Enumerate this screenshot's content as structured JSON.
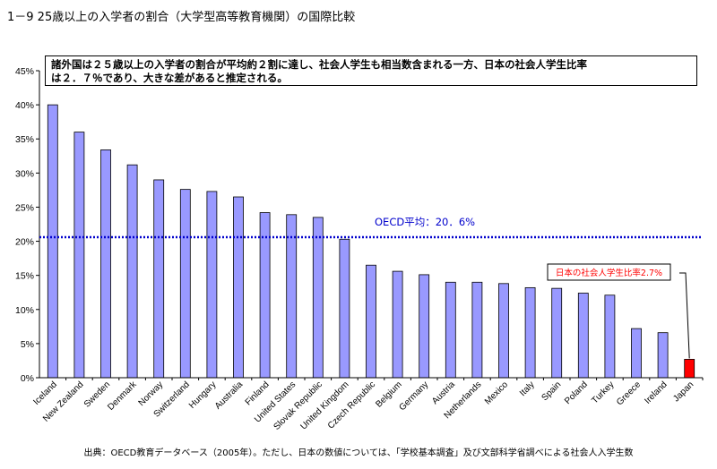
{
  "title": "1－9 25歳以上の入学者の割合（大学型高等教育機関）の国際比較",
  "summary": {
    "line1": "諸外国は２５歳以上の入学者の割合が平均約２割に達し、社会人学生も相当数含まれる一方、日本の社会人学生比率",
    "line2": "は２．７％であり、大きな差があると推定される。"
  },
  "source": "出典：OECD教育データベース（2005年）。ただし、日本の数値については、「学校基本調査」及び文部科学省調べによる社会人入学生数",
  "colors": {
    "bar": "#9999ff",
    "highlight": "#ff0000",
    "avg_line": "#0000cc"
  },
  "chart_data": {
    "type": "bar",
    "categories": [
      "Iceland",
      "New Zealand",
      "Sweden",
      "Denmark",
      "Norway",
      "Switzerland",
      "Hungary",
      "Australia",
      "Finland",
      "United States",
      "Slovak Republic",
      "United Kingdom",
      "Czech Republic",
      "Belgium",
      "Germany",
      "Austria",
      "Netherlands",
      "Mexico",
      "Italy",
      "Spain",
      "Poland",
      "Turkey",
      "Greece",
      "Ireland",
      "Japan"
    ],
    "values": [
      40.0,
      36.0,
      33.4,
      31.2,
      29.0,
      27.6,
      27.3,
      26.5,
      24.2,
      23.9,
      23.5,
      20.3,
      16.5,
      15.6,
      15.1,
      14.0,
      14.0,
      13.8,
      13.2,
      13.1,
      12.4,
      12.1,
      7.2,
      6.6,
      2.7
    ],
    "highlight_category": "Japan",
    "ylim": [
      0,
      45
    ],
    "yticks": [
      "0%",
      "5%",
      "10%",
      "15%",
      "20%",
      "25%",
      "30%",
      "35%",
      "40%",
      "45%"
    ],
    "average_line": {
      "value": 20.6,
      "label": "OECD平均：20．6%"
    },
    "annotation": {
      "text": "日本の社会人学生比率2.7%",
      "target": "Japan"
    },
    "grid": false
  }
}
